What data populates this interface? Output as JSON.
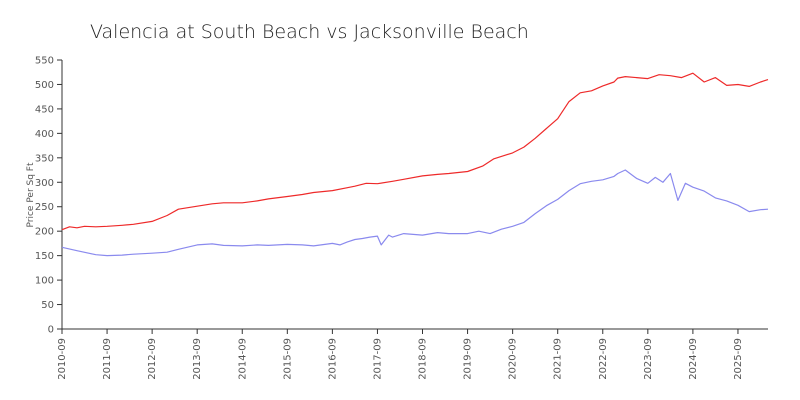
{
  "chart_data": {
    "type": "line",
    "title": "Valencia at South Beach vs Jacksonville Beach",
    "xlabel": "",
    "ylabel": "Price Per Sq Ft",
    "ylim": [
      0,
      550
    ],
    "yticks": [
      0,
      50,
      100,
      150,
      200,
      250,
      300,
      350,
      400,
      450,
      500,
      550
    ],
    "xticks": [
      "2010-09",
      "2011-09",
      "2012-09",
      "2013-09",
      "2014-09",
      "2015-09",
      "2016-09",
      "2017-09",
      "2018-09",
      "2019-09",
      "2020-09",
      "2021-09",
      "2022-09",
      "2023-09",
      "2024-09",
      "2025-09"
    ],
    "x_start": "2010-09",
    "x_end": "2026-05",
    "grid": false,
    "legend": "none",
    "series": [
      {
        "color": "#ee2a2a",
        "x": [
          "2010-09",
          "2010-11",
          "2011-01",
          "2011-03",
          "2011-06",
          "2011-09",
          "2012-01",
          "2012-04",
          "2012-09",
          "2013-01",
          "2013-04",
          "2013-09",
          "2014-01",
          "2014-04",
          "2014-09",
          "2015-01",
          "2015-04",
          "2015-09",
          "2016-01",
          "2016-04",
          "2016-09",
          "2017-01",
          "2017-03",
          "2017-06",
          "2017-09",
          "2018-01",
          "2018-04",
          "2018-09",
          "2019-01",
          "2019-04",
          "2019-09",
          "2020-01",
          "2020-04",
          "2020-09",
          "2020-12",
          "2021-03",
          "2021-06",
          "2021-09",
          "2021-12",
          "2022-03",
          "2022-06",
          "2022-09",
          "2022-12",
          "2023-01",
          "2023-03",
          "2023-06",
          "2023-09",
          "2023-12",
          "2024-03",
          "2024-06",
          "2024-09",
          "2024-12",
          "2025-03",
          "2025-06",
          "2025-09",
          "2025-12",
          "2026-03",
          "2026-05"
        ],
        "values": [
          203,
          209,
          207,
          210,
          209,
          210,
          212,
          214,
          220,
          232,
          245,
          251,
          256,
          258,
          258,
          262,
          266,
          271,
          275,
          279,
          283,
          289,
          292,
          298,
          297,
          302,
          306,
          313,
          316,
          318,
          322,
          333,
          348,
          360,
          372,
          390,
          410,
          430,
          465,
          483,
          487,
          497,
          505,
          513,
          516,
          514,
          512,
          520,
          518,
          514,
          523,
          505,
          514,
          498,
          500,
          496,
          505,
          510
        ]
      },
      {
        "color": "#8a8aee",
        "x": [
          "2010-09",
          "2011-01",
          "2011-06",
          "2011-09",
          "2012-01",
          "2012-04",
          "2012-09",
          "2013-01",
          "2013-04",
          "2013-09",
          "2014-01",
          "2014-04",
          "2014-09",
          "2015-01",
          "2015-04",
          "2015-09",
          "2016-01",
          "2016-04",
          "2016-09",
          "2016-11",
          "2017-01",
          "2017-03",
          "2017-05",
          "2017-07",
          "2017-09",
          "2017-10",
          "2017-12",
          "2018-01",
          "2018-04",
          "2018-09",
          "2019-01",
          "2019-04",
          "2019-09",
          "2019-12",
          "2020-03",
          "2020-06",
          "2020-09",
          "2020-12",
          "2021-03",
          "2021-06",
          "2021-09",
          "2021-12",
          "2022-03",
          "2022-06",
          "2022-09",
          "2022-12",
          "2023-01",
          "2023-03",
          "2023-06",
          "2023-09",
          "2023-11",
          "2024-01",
          "2024-03",
          "2024-05",
          "2024-07",
          "2024-09",
          "2024-12",
          "2025-03",
          "2025-06",
          "2025-09",
          "2025-12",
          "2026-03",
          "2026-05"
        ],
        "values": [
          167,
          160,
          152,
          150,
          151,
          153,
          155,
          157,
          163,
          172,
          174,
          171,
          170,
          172,
          171,
          173,
          172,
          170,
          175,
          172,
          178,
          183,
          185,
          188,
          190,
          172,
          192,
          188,
          195,
          192,
          197,
          195,
          195,
          200,
          195,
          204,
          210,
          218,
          236,
          252,
          265,
          283,
          297,
          302,
          305,
          312,
          318,
          325,
          308,
          298,
          310,
          300,
          318,
          263,
          298,
          290,
          282,
          268,
          262,
          253,
          240,
          244,
          245
        ]
      }
    ]
  }
}
